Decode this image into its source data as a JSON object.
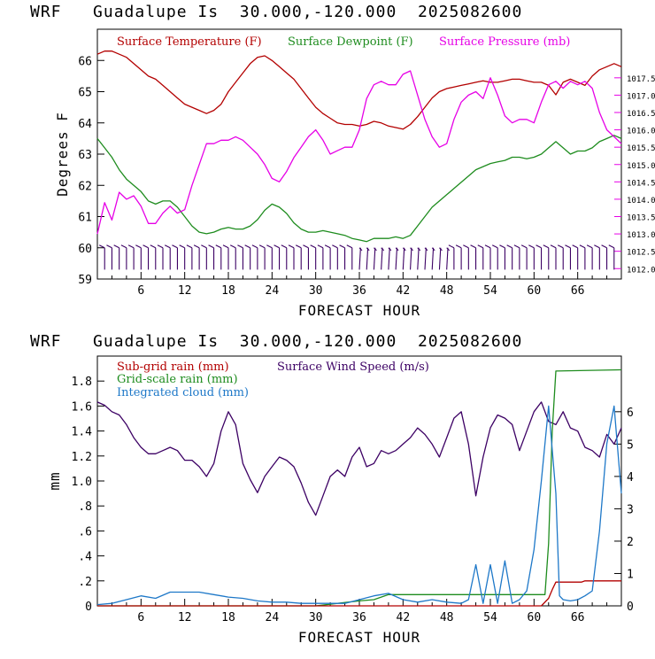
{
  "charts": [
    {
      "type": "line",
      "title": "WRF   Guadalupe Is  30.000,-120.000  2025082600",
      "xlabel": "FORECAST HOUR",
      "ylabel": "Degrees F",
      "xlim": [
        0,
        72
      ],
      "x_ticks": [
        6,
        12,
        18,
        24,
        30,
        36,
        42,
        48,
        54,
        60,
        66
      ],
      "ylim_left": [
        59,
        67
      ],
      "y_ticks_left": [
        "59",
        "60",
        "61",
        "62",
        "63",
        "64",
        "65",
        "66"
      ],
      "ylim_right": [
        1011.7,
        1018.9
      ],
      "y_ticks_right": [
        "1012.0",
        "1012.5",
        "1013.0",
        "1013.5",
        "1014.0",
        "1014.5",
        "1015.0",
        "1015.5",
        "1016.0",
        "1016.5",
        "1017.0",
        "1017.5"
      ],
      "legend": [
        "Surface Temperature (F)",
        "Surface Dewpoint (F)",
        "Surface Pressure (mb)"
      ],
      "colors": {
        "temperature": "#b30000",
        "dewpoint": "#1e8c1e",
        "pressure": "#e600e6",
        "wind_barbs": "#3c0064"
      },
      "series": [
        {
          "name": "Surface Temperature (F)",
          "axis": "left",
          "x": [
            0,
            1,
            2,
            3,
            4,
            5,
            6,
            7,
            8,
            9,
            10,
            11,
            12,
            13,
            14,
            15,
            16,
            17,
            18,
            19,
            20,
            21,
            22,
            23,
            24,
            25,
            26,
            27,
            28,
            29,
            30,
            31,
            32,
            33,
            34,
            35,
            36,
            37,
            38,
            39,
            40,
            41,
            42,
            43,
            44,
            45,
            46,
            47,
            48,
            49,
            50,
            51,
            52,
            53,
            54,
            55,
            56,
            57,
            58,
            59,
            60,
            61,
            62,
            63,
            64,
            65,
            66,
            67,
            68,
            69,
            70,
            71,
            72
          ],
          "values": [
            66.2,
            66.3,
            66.3,
            66.2,
            66.1,
            65.9,
            65.7,
            65.5,
            65.4,
            65.2,
            65.0,
            64.8,
            64.6,
            64.5,
            64.4,
            64.3,
            64.4,
            64.6,
            65.0,
            65.3,
            65.6,
            65.9,
            66.1,
            66.15,
            66.0,
            65.8,
            65.6,
            65.4,
            65.1,
            64.8,
            64.5,
            64.3,
            64.15,
            64.0,
            63.95,
            63.95,
            63.9,
            63.95,
            64.05,
            64.0,
            63.9,
            63.85,
            63.8,
            63.95,
            64.2,
            64.5,
            64.8,
            65.0,
            65.1,
            65.15,
            65.2,
            65.25,
            65.3,
            65.35,
            65.3,
            65.3,
            65.35,
            65.4,
            65.4,
            65.35,
            65.3,
            65.3,
            65.2,
            64.9,
            65.3,
            65.4,
            65.3,
            65.2,
            65.5,
            65.7,
            65.8,
            65.9,
            65.8
          ]
        },
        {
          "name": "Surface Dewpoint (F)",
          "axis": "left",
          "x": [
            0,
            1,
            2,
            3,
            4,
            5,
            6,
            7,
            8,
            9,
            10,
            11,
            12,
            13,
            14,
            15,
            16,
            17,
            18,
            19,
            20,
            21,
            22,
            23,
            24,
            25,
            26,
            27,
            28,
            29,
            30,
            31,
            32,
            33,
            34,
            35,
            36,
            37,
            38,
            39,
            40,
            41,
            42,
            43,
            44,
            45,
            46,
            47,
            48,
            49,
            50,
            51,
            52,
            53,
            54,
            55,
            56,
            57,
            58,
            59,
            60,
            61,
            62,
            63,
            64,
            65,
            66,
            67,
            68,
            69,
            70,
            71,
            72
          ],
          "values": [
            63.5,
            63.2,
            62.9,
            62.5,
            62.2,
            62.0,
            61.8,
            61.5,
            61.4,
            61.5,
            61.5,
            61.3,
            61.0,
            60.7,
            60.5,
            60.45,
            60.5,
            60.6,
            60.65,
            60.6,
            60.6,
            60.7,
            60.9,
            61.2,
            61.4,
            61.3,
            61.1,
            60.8,
            60.6,
            60.5,
            60.5,
            60.55,
            60.5,
            60.45,
            60.4,
            60.3,
            60.25,
            60.2,
            60.3,
            60.3,
            60.3,
            60.35,
            60.3,
            60.4,
            60.7,
            61.0,
            61.3,
            61.5,
            61.7,
            61.9,
            62.1,
            62.3,
            62.5,
            62.6,
            62.7,
            62.75,
            62.8,
            62.9,
            62.9,
            62.85,
            62.9,
            63.0,
            63.2,
            63.4,
            63.2,
            63.0,
            63.1,
            63.1,
            63.2,
            63.4,
            63.5,
            63.6,
            63.5
          ]
        },
        {
          "name": "Surface Pressure (mb)",
          "axis": "right",
          "x": [
            0,
            1,
            2,
            3,
            4,
            5,
            6,
            7,
            8,
            9,
            10,
            11,
            12,
            13,
            14,
            15,
            16,
            17,
            18,
            19,
            20,
            21,
            22,
            23,
            24,
            25,
            26,
            27,
            28,
            29,
            30,
            31,
            32,
            33,
            34,
            35,
            36,
            37,
            38,
            39,
            40,
            41,
            42,
            43,
            44,
            45,
            46,
            47,
            48,
            49,
            50,
            51,
            52,
            53,
            54,
            55,
            56,
            57,
            58,
            59,
            60,
            61,
            62,
            63,
            64,
            65,
            66,
            67,
            68,
            69,
            70,
            71,
            72
          ],
          "values": [
            1013.0,
            1013.9,
            1013.4,
            1014.2,
            1014.0,
            1014.1,
            1013.8,
            1013.3,
            1013.3,
            1013.6,
            1013.8,
            1013.6,
            1013.7,
            1014.4,
            1015.0,
            1015.6,
            1015.6,
            1015.7,
            1015.7,
            1015.8,
            1015.7,
            1015.5,
            1015.3,
            1015.0,
            1014.6,
            1014.5,
            1014.8,
            1015.2,
            1015.5,
            1015.8,
            1016.0,
            1015.7,
            1015.3,
            1015.4,
            1015.5,
            1015.5,
            1016.0,
            1016.9,
            1017.3,
            1017.4,
            1017.3,
            1017.3,
            1017.6,
            1017.7,
            1017.0,
            1016.3,
            1015.8,
            1015.5,
            1015.6,
            1016.3,
            1016.8,
            1017.0,
            1017.1,
            1016.9,
            1017.5,
            1017.0,
            1016.4,
            1016.2,
            1016.3,
            1016.3,
            1016.2,
            1016.8,
            1017.3,
            1017.4,
            1017.2,
            1017.4,
            1017.3,
            1017.4,
            1017.2,
            1016.5,
            1016.0,
            1015.8,
            1015.6
          ]
        }
      ],
      "wind_barbs": {
        "x": [
          1,
          2,
          3,
          4,
          5,
          6,
          7,
          8,
          9,
          10,
          11,
          12,
          13,
          14,
          15,
          16,
          17,
          18,
          19,
          20,
          21,
          22,
          23,
          24,
          25,
          26,
          27,
          28,
          29,
          30,
          31,
          32,
          33,
          34,
          35,
          36,
          37,
          38,
          39,
          40,
          41,
          42,
          43,
          44,
          45,
          46,
          47,
          48,
          49,
          50,
          51,
          52,
          53,
          54,
          55,
          56,
          57,
          58,
          59,
          60,
          61,
          62,
          63,
          64,
          65,
          66,
          67,
          68,
          69,
          70,
          71
        ]
      }
    },
    {
      "type": "line",
      "title": "WRF   Guadalupe Is  30.000,-120.000  2025082600",
      "xlabel": "FORECAST HOUR",
      "ylabel": "mm",
      "xlim": [
        0,
        72
      ],
      "x_ticks": [
        6,
        12,
        18,
        24,
        30,
        36,
        42,
        48,
        54,
        60,
        66
      ],
      "ylim_left": [
        0,
        2.0
      ],
      "y_ticks_left": [
        "0",
        ".2",
        ".4",
        ".6",
        ".8",
        "1.0",
        "1.2",
        "1.4",
        "1.6",
        "1.8"
      ],
      "ylim_right": [
        0,
        7.72
      ],
      "y_ticks_right": [
        "0",
        "1",
        "2",
        "3",
        "4",
        "5",
        "6"
      ],
      "legend": [
        "Sub-grid rain (mm)",
        "Surface Wind Speed (m/s)",
        "Grid-scale rain (mm)",
        "Integrated cloud (mm)"
      ],
      "colors": {
        "subgrid": "#b30000",
        "wind": "#3c0064",
        "gridscale": "#1e8c1e",
        "cloud": "#1e78c8"
      },
      "series": [
        {
          "name": "Surface Wind Speed (m/s)",
          "axis": "right",
          "x": [
            0,
            1,
            2,
            3,
            4,
            5,
            6,
            7,
            8,
            9,
            10,
            11,
            12,
            13,
            14,
            15,
            16,
            17,
            18,
            19,
            20,
            21,
            22,
            23,
            24,
            25,
            26,
            27,
            28,
            29,
            30,
            31,
            32,
            33,
            34,
            35,
            36,
            37,
            38,
            39,
            40,
            41,
            42,
            43,
            44,
            45,
            46,
            47,
            48,
            49,
            50,
            51,
            52,
            53,
            54,
            55,
            56,
            57,
            58,
            59,
            60,
            61,
            62,
            63,
            64,
            65,
            66,
            67,
            68,
            69,
            70,
            71,
            72
          ],
          "values": [
            6.3,
            6.2,
            6.0,
            5.9,
            5.6,
            5.2,
            4.9,
            4.7,
            4.7,
            4.8,
            4.9,
            4.8,
            4.5,
            4.5,
            4.3,
            4.0,
            4.4,
            5.4,
            6.0,
            5.6,
            4.4,
            3.9,
            3.5,
            4.0,
            4.3,
            4.6,
            4.5,
            4.3,
            3.8,
            3.2,
            2.8,
            3.4,
            4.0,
            4.2,
            4.0,
            4.6,
            4.9,
            4.3,
            4.4,
            4.8,
            4.7,
            4.8,
            5.0,
            5.2,
            5.5,
            5.3,
            5.0,
            4.6,
            5.2,
            5.8,
            6.0,
            5.0,
            3.4,
            4.6,
            5.5,
            5.9,
            5.8,
            5.6,
            4.8,
            5.4,
            6.0,
            6.3,
            5.7,
            5.6,
            6.0,
            5.5,
            5.4,
            4.9,
            4.8,
            4.6,
            5.3,
            5.0,
            5.5
          ]
        },
        {
          "name": "Grid-scale rain (mm)",
          "axis": "left",
          "x": [
            0,
            30,
            33,
            36,
            38,
            40,
            48,
            60,
            61.5,
            62,
            62.5,
            63,
            72
          ],
          "values": [
            0,
            0,
            0.02,
            0.04,
            0.05,
            0.09,
            0.09,
            0.09,
            0.09,
            0.5,
            1.4,
            1.88,
            1.89
          ]
        },
        {
          "name": "Sub-grid rain (mm)",
          "axis": "left",
          "x": [
            0,
            61,
            62,
            62.5,
            63,
            66.5,
            67,
            72
          ],
          "values": [
            0,
            0,
            0.06,
            0.13,
            0.19,
            0.19,
            0.2,
            0.2
          ]
        },
        {
          "name": "Integrated cloud (mm)",
          "axis": "left",
          "x": [
            0,
            2,
            4,
            6,
            8,
            10,
            12,
            14,
            16,
            18,
            20,
            22,
            24,
            26,
            28,
            30,
            32,
            34,
            36,
            38,
            40,
            42,
            44,
            46,
            48,
            50,
            51,
            52,
            53,
            54,
            55,
            56,
            57,
            58,
            59,
            60,
            61,
            62,
            63,
            63.5,
            64,
            65,
            66,
            67,
            68,
            69,
            70,
            71,
            72
          ],
          "values": [
            0.01,
            0.02,
            0.05,
            0.08,
            0.06,
            0.11,
            0.11,
            0.11,
            0.09,
            0.07,
            0.06,
            0.04,
            0.03,
            0.03,
            0.02,
            0.02,
            0.02,
            0.02,
            0.05,
            0.08,
            0.1,
            0.05,
            0.03,
            0.05,
            0.03,
            0.02,
            0.05,
            0.33,
            0.02,
            0.33,
            0.02,
            0.36,
            0.02,
            0.05,
            0.12,
            0.45,
            1.0,
            1.6,
            0.9,
            0.08,
            0.05,
            0.04,
            0.05,
            0.08,
            0.12,
            0.6,
            1.3,
            1.6,
            0.9
          ]
        }
      ]
    }
  ]
}
